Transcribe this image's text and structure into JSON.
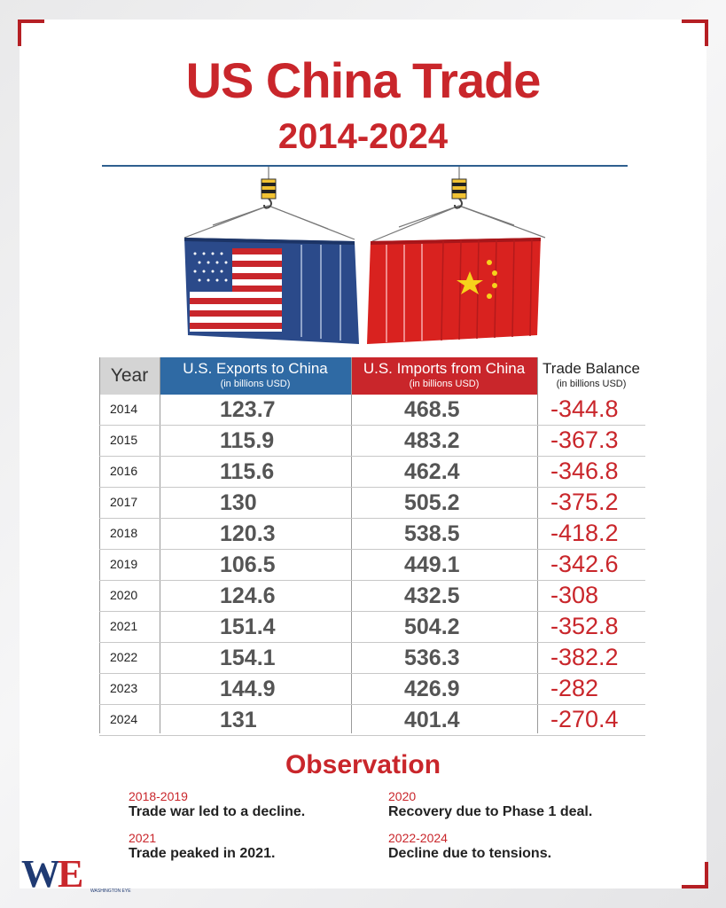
{
  "header": {
    "title": "US China Trade",
    "subtitle": "2014-2024"
  },
  "table": {
    "year_header": "Year",
    "exports_header": "U.S. Exports to China",
    "exports_unit": "(in billions USD)",
    "imports_header": "U.S. Imports from China",
    "imports_unit": "(in billions USD)",
    "balance_header": "Trade Balance",
    "balance_unit": "(in billions USD)",
    "rows": [
      {
        "year": "2014",
        "exports": "123.7",
        "imports": "468.5",
        "balance": "-344.8"
      },
      {
        "year": "2015",
        "exports": "115.9",
        "imports": "483.2",
        "balance": "-367.3"
      },
      {
        "year": "2016",
        "exports": "115.6",
        "imports": "462.4",
        "balance": "-346.8"
      },
      {
        "year": "2017",
        "exports": "130",
        "imports": "505.2",
        "balance": "-375.2"
      },
      {
        "year": "2018",
        "exports": "120.3",
        "imports": "538.5",
        "balance": "-418.2"
      },
      {
        "year": "2019",
        "exports": "106.5",
        "imports": "449.1",
        "balance": "-342.6"
      },
      {
        "year": "2020",
        "exports": "124.6",
        "imports": "432.5",
        "balance": "-308"
      },
      {
        "year": "2021",
        "exports": "151.4",
        "imports": "504.2",
        "balance": "-352.8"
      },
      {
        "year": "2022",
        "exports": "154.1",
        "imports": "536.3",
        "balance": "-382.2"
      },
      {
        "year": "2023",
        "exports": "144.9",
        "imports": "426.9",
        "balance": "-282"
      },
      {
        "year": "2024",
        "exports": "131",
        "imports": "401.4",
        "balance": "-270.4"
      }
    ]
  },
  "chart_data": {
    "type": "table",
    "title": "US China Trade",
    "subtitle": "2014-2024",
    "categories": [
      "2014",
      "2015",
      "2016",
      "2017",
      "2018",
      "2019",
      "2020",
      "2021",
      "2022",
      "2023",
      "2024"
    ],
    "series": [
      {
        "name": "U.S. Exports to China",
        "values": [
          123.7,
          115.9,
          115.6,
          130,
          120.3,
          106.5,
          124.6,
          151.4,
          154.1,
          144.9,
          131
        ]
      },
      {
        "name": "U.S. Imports from China",
        "values": [
          468.5,
          483.2,
          462.4,
          505.2,
          538.5,
          449.1,
          432.5,
          504.2,
          536.3,
          426.9,
          401.4
        ]
      },
      {
        "name": "Trade Balance",
        "values": [
          -344.8,
          -367.3,
          -346.8,
          -375.2,
          -418.2,
          -342.6,
          -308,
          -352.8,
          -382.2,
          -282,
          -270.4
        ]
      }
    ]
  },
  "observation": {
    "title": "Observation",
    "items": [
      {
        "years": "2018-2019",
        "text": "Trade war led to a decline."
      },
      {
        "years": "2020",
        "text": "Recovery due to Phase 1 deal."
      },
      {
        "years": "2021",
        "text": "Trade peaked in 2021."
      },
      {
        "years": "2022-2024",
        "text": "Decline due to tensions."
      }
    ]
  },
  "logo": {
    "mark_w": "W",
    "mark_e": "E",
    "name": "WASHINGTON EYE"
  },
  "colors": {
    "accent_red": "#c9262b",
    "accent_blue": "#2f6aa4",
    "navy": "#1f3a73"
  }
}
